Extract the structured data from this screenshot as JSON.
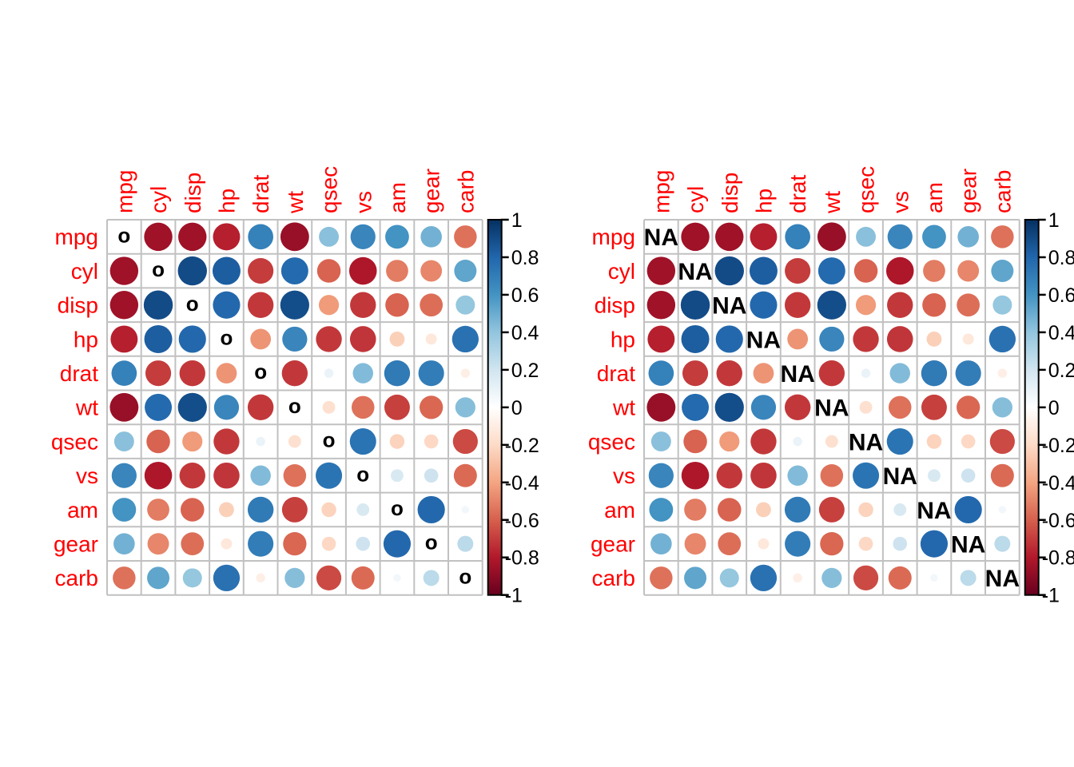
{
  "chart_data": {
    "type": "heatmap",
    "subtype": "correlation-circle-matrix-pair",
    "title": "",
    "variables": [
      "mpg",
      "cyl",
      "disp",
      "hp",
      "drat",
      "wt",
      "qsec",
      "vs",
      "am",
      "gear",
      "carb"
    ],
    "matrix": [
      [
        null,
        -0.85,
        -0.85,
        -0.78,
        0.68,
        -0.87,
        0.42,
        0.66,
        0.6,
        0.48,
        -0.55
      ],
      [
        -0.85,
        null,
        0.9,
        0.83,
        -0.7,
        0.78,
        -0.59,
        -0.81,
        -0.52,
        -0.49,
        0.53
      ],
      [
        -0.85,
        0.9,
        null,
        0.79,
        -0.71,
        0.89,
        -0.43,
        -0.71,
        -0.59,
        -0.56,
        0.39
      ],
      [
        -0.78,
        0.83,
        0.79,
        null,
        -0.45,
        0.66,
        -0.71,
        -0.72,
        -0.24,
        -0.13,
        0.75
      ],
      [
        0.68,
        -0.7,
        -0.71,
        -0.45,
        null,
        -0.71,
        0.09,
        0.44,
        0.71,
        0.7,
        -0.09
      ],
      [
        -0.87,
        0.78,
        0.89,
        0.66,
        -0.71,
        null,
        -0.17,
        -0.55,
        -0.69,
        -0.58,
        0.43
      ],
      [
        0.42,
        -0.59,
        -0.43,
        -0.71,
        0.09,
        -0.17,
        null,
        0.74,
        -0.23,
        -0.21,
        -0.66
      ],
      [
        0.66,
        -0.81,
        -0.71,
        -0.72,
        0.44,
        -0.55,
        0.74,
        null,
        0.17,
        0.21,
        -0.57
      ],
      [
        0.6,
        -0.52,
        -0.59,
        -0.24,
        0.71,
        -0.69,
        -0.23,
        0.17,
        null,
        0.79,
        0.06
      ],
      [
        0.48,
        -0.49,
        -0.56,
        -0.13,
        0.7,
        -0.58,
        -0.21,
        0.21,
        0.79,
        null,
        0.27
      ],
      [
        -0.55,
        0.53,
        0.39,
        0.75,
        -0.09,
        0.43,
        -0.66,
        -0.57,
        0.06,
        0.27,
        null
      ]
    ],
    "panels": [
      {
        "name": "left",
        "diag_label": "o"
      },
      {
        "name": "right",
        "diag_label": "NA"
      }
    ],
    "colorbar": {
      "position": "right",
      "range": [
        -1,
        1
      ],
      "tick_labels": [
        "1",
        "0.8",
        "0.6",
        "0.4",
        "0.2",
        "0",
        "-0.2",
        "-0.4",
        "-0.6",
        "-0.8",
        "-1"
      ]
    },
    "palette_rdbu": [
      "#67001F",
      "#B2182B",
      "#D6604D",
      "#F4A582",
      "#FDDBC7",
      "#FFFFFF",
      "#D1E5F0",
      "#92C5DE",
      "#4393C3",
      "#2166AC",
      "#053061"
    ],
    "styles": {
      "variable_label_color": "#ff0000",
      "diag_text_color": "#000000",
      "grid_color": "#c1c1c1",
      "tick_text_color": "#000000",
      "background": "#ffffff"
    },
    "grid": true
  }
}
